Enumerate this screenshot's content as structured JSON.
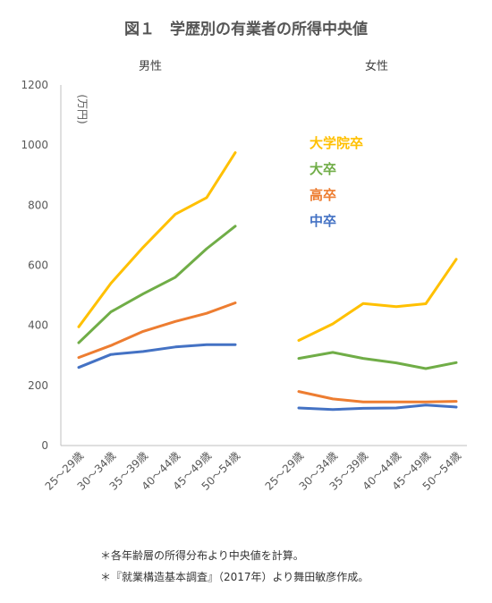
{
  "chart_data": {
    "type": "line",
    "title": "図１　学歴別の有業者の所得中央値",
    "ylabel": "(万円)",
    "ylim": [
      0,
      1200
    ],
    "yticks": [
      0,
      200,
      400,
      600,
      800,
      1000,
      1200
    ],
    "grid": false,
    "legend_position": "upper-right",
    "panels": [
      {
        "label": "男性",
        "categories": [
          "25～29歳",
          "30～34歳",
          "35～39歳",
          "40～44歳",
          "45～49歳",
          "50～54歳"
        ],
        "series": [
          {
            "name": "大学院卒",
            "color": "#FFC000",
            "values": [
              395,
              540,
              660,
              770,
              825,
              975
            ]
          },
          {
            "name": "大卒",
            "color": "#70AD47",
            "values": [
              342,
              445,
              505,
              560,
              655,
              730
            ]
          },
          {
            "name": "高卒",
            "color": "#ED7D31",
            "values": [
              293,
              333,
              380,
              413,
              440,
              475
            ]
          },
          {
            "name": "中卒",
            "color": "#4472C4",
            "values": [
              260,
              303,
              313,
              328,
              336,
              336
            ]
          }
        ]
      },
      {
        "label": "女性",
        "categories": [
          "25～29歳",
          "30～34歳",
          "35～39歳",
          "40～44歳",
          "45～49歳",
          "50～54歳"
        ],
        "series": [
          {
            "name": "大学院卒",
            "color": "#FFC000",
            "values": [
              350,
              405,
              473,
              462,
              472,
              620
            ]
          },
          {
            "name": "大卒",
            "color": "#70AD47",
            "values": [
              290,
              310,
              290,
              275,
              256,
              276
            ]
          },
          {
            "name": "高卒",
            "color": "#ED7D31",
            "values": [
              180,
              155,
              145,
              145,
              145,
              147
            ]
          },
          {
            "name": "中卒",
            "color": "#4472C4",
            "values": [
              125,
              120,
              124,
              125,
              135,
              128
            ]
          }
        ]
      }
    ]
  },
  "notes": [
    "＊各年齢層の所得分布より中央値を計算。",
    "＊『就業構造基本調査』（2017年）より舞田敏彦作成。"
  ]
}
